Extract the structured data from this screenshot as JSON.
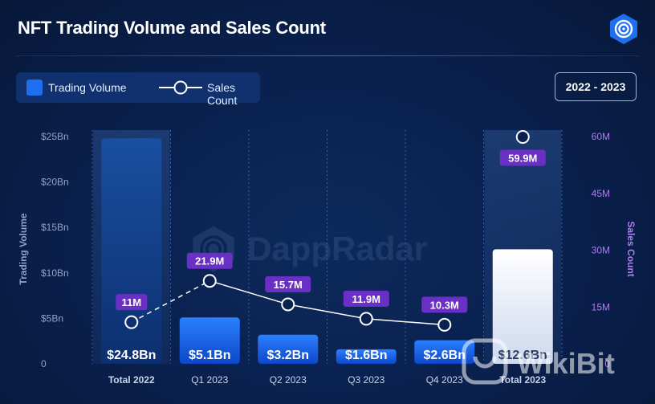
{
  "header": {
    "title": "NFT Trading Volume and Sales Count",
    "logo_icon": "dappradar-logo-icon"
  },
  "legend": {
    "volume_label": "Trading Volume",
    "count_label": "Sales Count"
  },
  "range_button": {
    "label": "2022 - 2023"
  },
  "watermark": {
    "text": "DappRadar",
    "secondary_text": "WikiBit"
  },
  "colors": {
    "bar": "#1e6ef0",
    "bar_highlight": "#ffffff",
    "label_badge": "#6a2fc4",
    "right_axis": "#b07cf0"
  },
  "chart_data": {
    "type": "bar",
    "title": "NFT Trading Volume and Sales Count",
    "categories": [
      "Total 2022",
      "Q1 2023",
      "Q2 2023",
      "Q3 2023",
      "Q4 2023",
      "Total 2023"
    ],
    "series": [
      {
        "name": "Trading Volume",
        "axis": "left",
        "unit": "Bn",
        "values": [
          24.8,
          5.1,
          3.2,
          1.6,
          2.6,
          12.6
        ],
        "labels": [
          "$24.8Bn",
          "$5.1Bn",
          "$3.2Bn",
          "$1.6Bn",
          "$2.6Bn",
          "$12.6Bn"
        ]
      },
      {
        "name": "Sales Count",
        "axis": "right",
        "type": "line",
        "unit": "M",
        "values": [
          11,
          21.9,
          15.7,
          11.9,
          10.3,
          59.9
        ],
        "labels": [
          "11M",
          "21.9M",
          "15.7M",
          "11.9M",
          "10.3M",
          "59.9M"
        ]
      }
    ],
    "ylabel": "Trading Volume",
    "ylabel_right": "Sales Count",
    "ylim": [
      0,
      25
    ],
    "ylim_right": [
      0,
      60
    ],
    "yticks": [
      "0",
      "$5Bn",
      "$10Bn",
      "$15Bn",
      "$20Bn",
      "$25Bn"
    ],
    "yticks_right": [
      "0",
      "15M",
      "30M",
      "45M",
      "60M"
    ]
  }
}
